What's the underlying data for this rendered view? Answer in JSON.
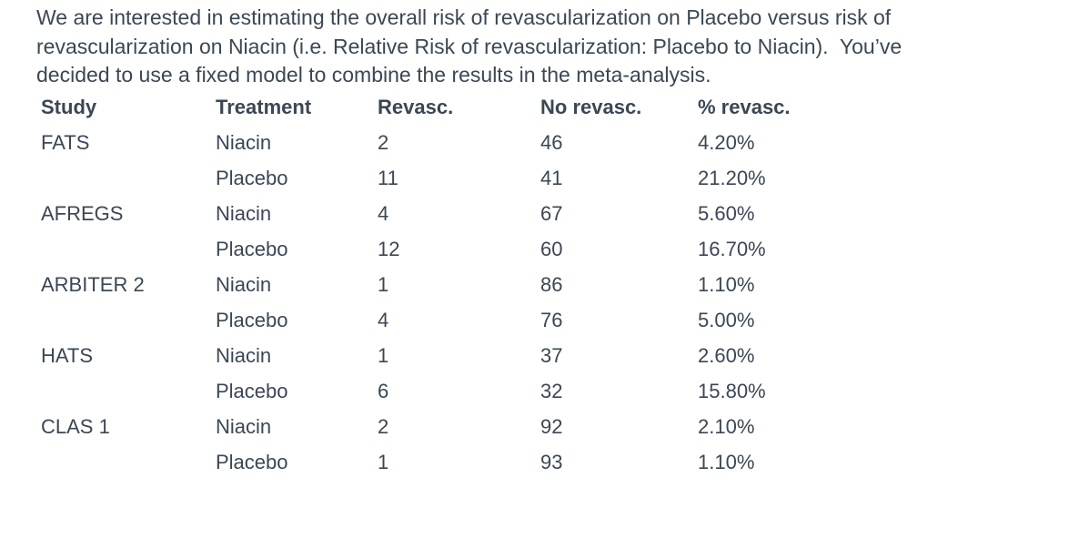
{
  "colors": {
    "text": "#3b4754",
    "background": "#ffffff"
  },
  "intro": {
    "text": "We are interested in estimating the overall risk of revascularization on Placebo versus risk of\nrevascularization on Niacin (i.e. Relative Risk of revascularization: Placebo to Niacin).  You’ve\ndecided to use a fixed model to combine the results in the meta-analysis."
  },
  "table": {
    "columns": [
      "Study",
      "Treatment",
      "Revasc.",
      "No revasc.",
      "% revasc."
    ],
    "column_keys": [
      "study",
      "treatment",
      "revasc",
      "no_revasc",
      "pct_revasc"
    ],
    "rows": [
      {
        "study": "FATS",
        "treatment": "Niacin",
        "revasc": "2",
        "no_revasc": "46",
        "pct_revasc": "4.20%"
      },
      {
        "study": "",
        "treatment": "Placebo",
        "revasc": "11",
        "no_revasc": "41",
        "pct_revasc": "21.20%"
      },
      {
        "study": "AFREGS",
        "treatment": "Niacin",
        "revasc": "4",
        "no_revasc": "67",
        "pct_revasc": "5.60%"
      },
      {
        "study": "",
        "treatment": "Placebo",
        "revasc": "12",
        "no_revasc": "60",
        "pct_revasc": "16.70%"
      },
      {
        "study": "ARBITER 2",
        "treatment": "Niacin",
        "revasc": "1",
        "no_revasc": "86",
        "pct_revasc": "1.10%"
      },
      {
        "study": "",
        "treatment": "Placebo",
        "revasc": "4",
        "no_revasc": "76",
        "pct_revasc": "5.00%"
      },
      {
        "study": "HATS",
        "treatment": "Niacin",
        "revasc": "1",
        "no_revasc": "37",
        "pct_revasc": "2.60%"
      },
      {
        "study": "",
        "treatment": "Placebo",
        "revasc": "6",
        "no_revasc": "32",
        "pct_revasc": "15.80%"
      },
      {
        "study": "CLAS 1",
        "treatment": "Niacin",
        "revasc": "2",
        "no_revasc": "92",
        "pct_revasc": "2.10%"
      },
      {
        "study": "",
        "treatment": "Placebo",
        "revasc": "1",
        "no_revasc": "93",
        "pct_revasc": "1.10%"
      }
    ]
  }
}
